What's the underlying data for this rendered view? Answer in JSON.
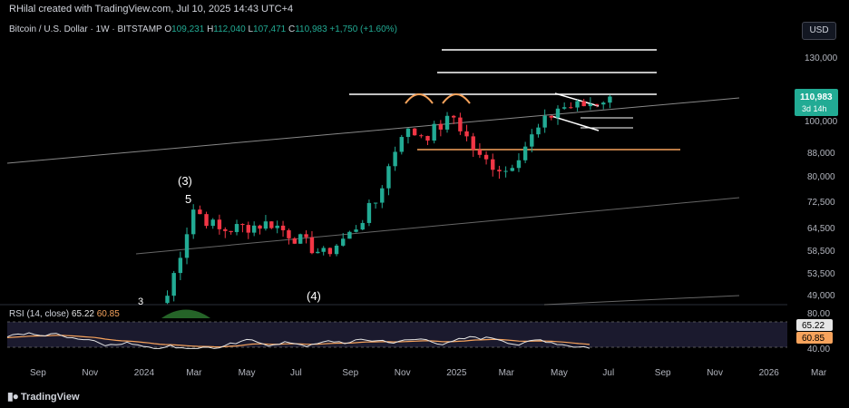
{
  "header": {
    "credit": "RHilal created with TradingView.com, Jul 10, 2025 14:43 UTC+4",
    "symbol": "Bitcoin / U.S. Dollar · 1W · BITSTAMP",
    "open_label": "O",
    "open": "109,231",
    "high_label": "H",
    "high": "112,040",
    "low_label": "L",
    "low": "107,471",
    "close_label": "C",
    "close": "110,983",
    "change": "+1,750 (+1.60%)",
    "currency_button": "USD"
  },
  "price_badge": {
    "price": "110,983",
    "countdown": "3d 14h"
  },
  "rsi": {
    "label": "RSI (14, close)",
    "value": "65.22",
    "ma": "60.85",
    "value_badge": "65.22",
    "ma_badge": "60.85"
  },
  "footer": {
    "brand": "TradingView"
  },
  "colors": {
    "up": "#22ab94",
    "down": "#f23645",
    "orange": "#f7a35c",
    "rsi": "#e6e6e6"
  },
  "chart_data": {
    "type": "candlestick",
    "price_axis_ticks": [
      "130,000",
      "110,983",
      "100,000",
      "88,000",
      "80,000",
      "72,500",
      "64,500",
      "58,500",
      "53,500",
      "49,000"
    ],
    "rsi_axis_ticks": [
      "80.00",
      "65.22",
      "60.85",
      "40.00"
    ],
    "x_ticks": [
      "Sep",
      "Nov",
      "2024",
      "Mar",
      "May",
      "Jul",
      "Sep",
      "Nov",
      "2025",
      "Mar",
      "May",
      "Jul",
      "Sep",
      "Nov",
      "2026",
      "Mar"
    ],
    "annotations": [
      "(3)",
      "5",
      "(4)",
      "3"
    ],
    "horizontal_levels": [
      {
        "price": 135000,
        "color": "white"
      },
      {
        "price": 120000,
        "color": "white"
      },
      {
        "price": 109000,
        "color": "white"
      },
      {
        "price": 87000,
        "color": "orange"
      },
      {
        "price": 104000,
        "color": "white"
      },
      {
        "price": 97000,
        "color": "white"
      }
    ],
    "weekly_close_path": [
      {
        "week": "2024-02",
        "close": 49000
      },
      {
        "week": "2024-03",
        "close": 70000
      },
      {
        "week": "2024-04",
        "close": 64000
      },
      {
        "week": "2024-06",
        "close": 66000
      },
      {
        "week": "2024-08",
        "close": 58000
      },
      {
        "week": "2024-09",
        "close": 63000
      },
      {
        "week": "2024-10",
        "close": 72000
      },
      {
        "week": "2024-11",
        "close": 96000
      },
      {
        "week": "2024-12",
        "close": 95000
      },
      {
        "week": "2025-01",
        "close": 102000
      },
      {
        "week": "2025-02",
        "close": 86000
      },
      {
        "week": "2025-03",
        "close": 82000
      },
      {
        "week": "2025-04",
        "close": 94000
      },
      {
        "week": "2025-05",
        "close": 106000
      },
      {
        "week": "2025-06",
        "close": 107000
      },
      {
        "week": "2025-07",
        "close": 110983
      }
    ]
  }
}
